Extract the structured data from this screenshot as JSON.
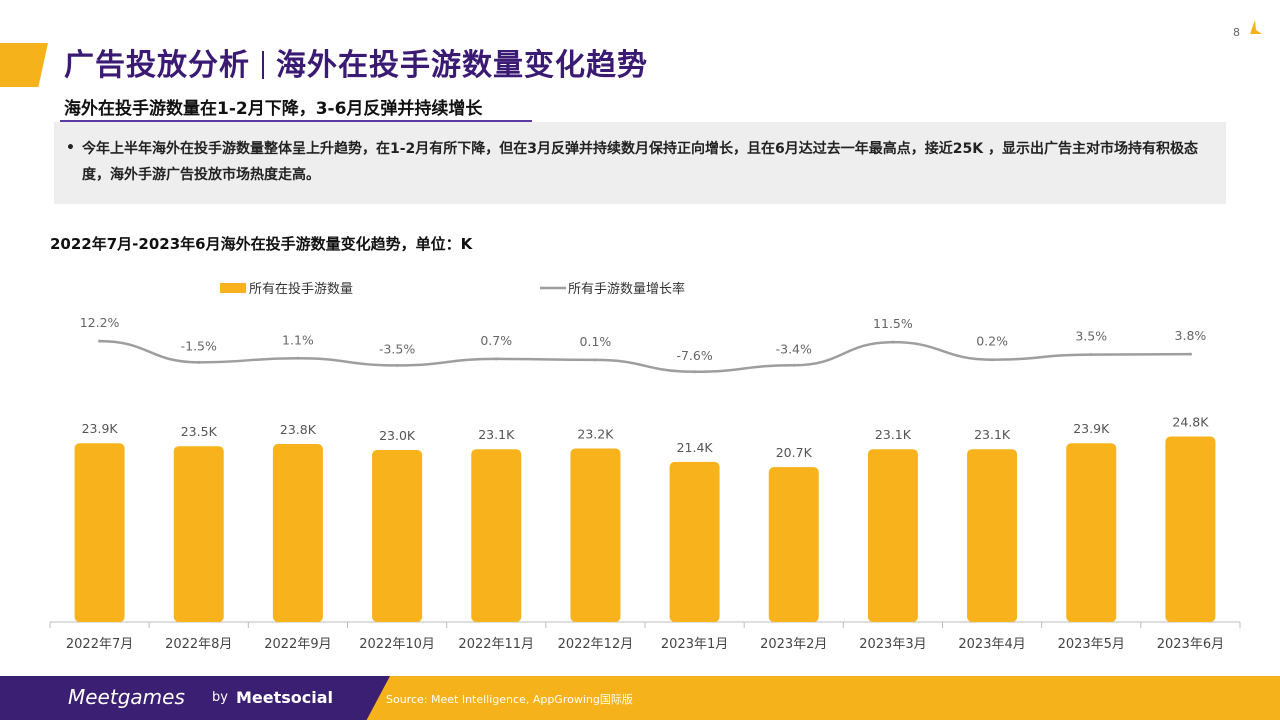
{
  "header": {
    "title_part1": "广告投放分析",
    "title_part2": "海外在投手游数量变化趋势",
    "page_number": "8"
  },
  "subtitle": "海外在投手游数量在1-2月下降，3-6月反弹并持续增长",
  "note": {
    "bullet": "•",
    "text": "今年上半年海外在投手游数量整体呈上升趋势，在1-2月有所下降，但在3月反弹并持续数月保持正向增长，且在6月达过去一年最高点，接近25K ，显示出广告主对市场持有积极态度，海外手游广告投放市场热度走高。"
  },
  "chart_title": "2022年7月-2023年6月海外在投手游数量变化趋势，单位：K",
  "colors": {
    "bar": "#F8B31C",
    "line": "#9e9e9e",
    "brand_purple": "#3b1f72",
    "accent": "#F6B21B"
  },
  "chart_data": {
    "type": "bar",
    "categories": [
      "2022年7月",
      "2022年8月",
      "2022年9月",
      "2022年10月",
      "2022年11月",
      "2022年12月",
      "2023年1月",
      "2023年2月",
      "2023年3月",
      "2023年4月",
      "2023年5月",
      "2023年6月"
    ],
    "series": [
      {
        "name": "所有在投手游数量",
        "type": "bar",
        "values": [
          23.9,
          23.5,
          23.8,
          23.0,
          23.1,
          23.2,
          21.4,
          20.7,
          23.1,
          23.1,
          23.9,
          24.8
        ],
        "labels": [
          "23.9K",
          "23.5K",
          "23.8K",
          "23.0K",
          "23.1K",
          "23.2K",
          "21.4K",
          "20.7K",
          "23.1K",
          "23.1K",
          "23.9K",
          "24.8K"
        ]
      },
      {
        "name": "所有手游数量增长率",
        "type": "line",
        "values": [
          12.2,
          -1.5,
          1.1,
          -3.5,
          0.7,
          0.1,
          -7.6,
          -3.4,
          11.5,
          0.2,
          3.5,
          3.8
        ],
        "labels": [
          "12.2%",
          "-1.5%",
          "1.1%",
          "-3.5%",
          "0.7%",
          "0.1%",
          "-7.6%",
          "-3.4%",
          "11.5%",
          "0.2%",
          "3.5%",
          "3.8%"
        ]
      }
    ],
    "legend": "top-left",
    "ylim": [
      0,
      25
    ]
  },
  "footer": {
    "brand": "Meetgames",
    "by": "by",
    "brand2": "Meetsocial",
    "source": "Source: Meet Intelligence, AppGrowing国际版"
  }
}
